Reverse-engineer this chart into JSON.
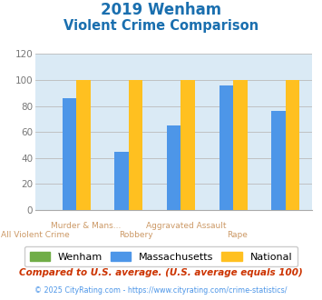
{
  "title_line1": "2019 Wenham",
  "title_line2": "Violent Crime Comparison",
  "title_color": "#1a6faf",
  "cat_labels_top": [
    "",
    "Murder & Mans...",
    "",
    "Aggravated Assault",
    ""
  ],
  "cat_labels_bot": [
    "All Violent Crime",
    "",
    "Robbery",
    "",
    "Rape"
  ],
  "wenham_values": [
    0,
    0,
    0,
    0,
    0
  ],
  "mass_values": [
    86,
    45,
    65,
    96,
    76
  ],
  "national_values": [
    100,
    100,
    100,
    100,
    100
  ],
  "wenham_color": "#70ad47",
  "mass_color": "#4d96e8",
  "national_color": "#ffc020",
  "ylim": [
    0,
    120
  ],
  "yticks": [
    0,
    20,
    40,
    60,
    80,
    100,
    120
  ],
  "grid_color": "#bbbbbb",
  "plot_bg": "#daeaf5",
  "legend_labels": [
    "Wenham",
    "Massachusetts",
    "National"
  ],
  "footnote1": "Compared to U.S. average. (U.S. average equals 100)",
  "footnote2": "© 2025 CityRating.com - https://www.cityrating.com/crime-statistics/",
  "footnote1_color": "#cc3300",
  "footnote2_color": "#4d96e8",
  "label_color": "#cc9966"
}
